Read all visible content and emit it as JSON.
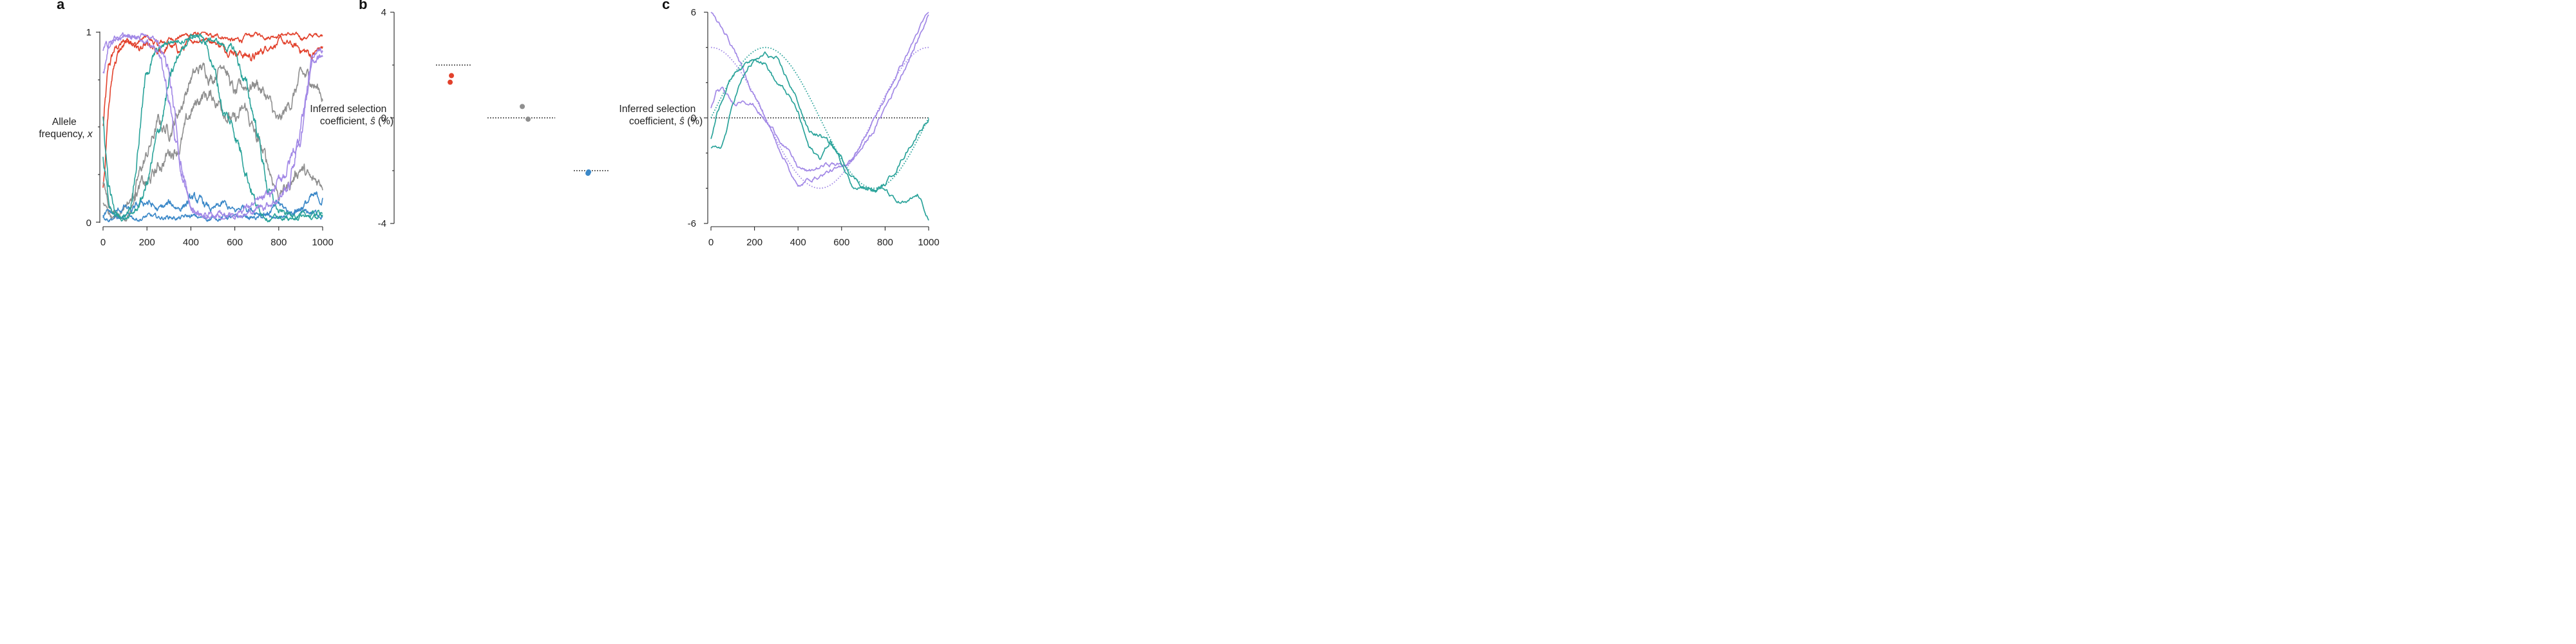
{
  "colors": {
    "red": "#e2412c",
    "gray": "#8f8f8f",
    "blue": "#3b88c8",
    "teal": "#2aa39a",
    "purple": "#a288e6",
    "axis": "#222222"
  },
  "chart_data": [
    {
      "panel": "a",
      "type": "line",
      "xlabel": "",
      "ylabel_line1": "Allele",
      "ylabel_line2": "frequency, ",
      "ylabel_var": "x",
      "xlim": [
        0,
        1000
      ],
      "ylim": [
        0,
        1
      ],
      "x_ticks": [
        0,
        200,
        400,
        600,
        800,
        1000
      ],
      "y_tick_labels": [
        "0",
        "1"
      ],
      "x": [
        0,
        25,
        50,
        75,
        100,
        125,
        150,
        175,
        200,
        250,
        300,
        350,
        400,
        450,
        500,
        550,
        600,
        650,
        700,
        750,
        800,
        850,
        900,
        950,
        1000
      ],
      "series": [
        {
          "color": "red",
          "values": [
            0.5,
            0.8,
            0.9,
            0.93,
            0.95,
            0.96,
            0.94,
            0.96,
            0.97,
            0.93,
            0.96,
            0.98,
            0.99,
            0.99,
            0.97,
            0.98,
            0.95,
            0.97,
            0.99,
            0.98,
            0.99,
            0.99,
            0.97,
            0.98,
            0.99
          ]
        },
        {
          "color": "red",
          "values": [
            0.2,
            0.6,
            0.84,
            0.9,
            0.93,
            0.95,
            0.93,
            0.9,
            0.92,
            0.87,
            0.93,
            0.9,
            0.95,
            0.97,
            0.96,
            0.92,
            0.91,
            0.88,
            0.87,
            0.93,
            0.95,
            0.93,
            0.91,
            0.88,
            0.92
          ]
        },
        {
          "color": "gray",
          "values": [
            0.1,
            0.05,
            0.02,
            0.03,
            0.02,
            0.06,
            0.18,
            0.28,
            0.35,
            0.52,
            0.48,
            0.6,
            0.76,
            0.81,
            0.77,
            0.86,
            0.66,
            0.72,
            0.74,
            0.65,
            0.5,
            0.62,
            0.76,
            0.75,
            0.67
          ]
        },
        {
          "color": "gray",
          "values": [
            0.2,
            0.1,
            0.05,
            0.05,
            0.1,
            0.12,
            0.17,
            0.2,
            0.19,
            0.28,
            0.37,
            0.41,
            0.57,
            0.67,
            0.66,
            0.61,
            0.52,
            0.59,
            0.43,
            0.3,
            0.15,
            0.2,
            0.3,
            0.2,
            0.22
          ]
        },
        {
          "color": "blue",
          "values": [
            0.03,
            0.02,
            0.03,
            0.02,
            0.02,
            0.03,
            0.02,
            0.02,
            0.03,
            0.02,
            0.03,
            0.02,
            0.03,
            0.02,
            0.02,
            0.03,
            0.02,
            0.03,
            0.02,
            0.03,
            0.02,
            0.03,
            0.04,
            0.05,
            0.04
          ]
        },
        {
          "color": "blue",
          "values": [
            0.03,
            0.05,
            0.04,
            0.06,
            0.08,
            0.05,
            0.07,
            0.09,
            0.11,
            0.06,
            0.09,
            0.08,
            0.12,
            0.1,
            0.06,
            0.09,
            0.05,
            0.09,
            0.06,
            0.05,
            0.09,
            0.05,
            0.08,
            0.12,
            0.12
          ]
        },
        {
          "color": "teal",
          "values": [
            0.55,
            0.2,
            0.06,
            0.03,
            0.04,
            0.1,
            0.3,
            0.58,
            0.8,
            0.9,
            0.95,
            0.96,
            0.98,
            0.95,
            0.96,
            0.93,
            0.9,
            0.72,
            0.5,
            0.18,
            0.05,
            0.04,
            0.03,
            0.04,
            0.05
          ]
        },
        {
          "color": "teal",
          "values": [
            0.35,
            0.09,
            0.04,
            0.02,
            0.02,
            0.03,
            0.06,
            0.12,
            0.2,
            0.45,
            0.72,
            0.89,
            0.99,
            0.98,
            0.84,
            0.58,
            0.48,
            0.3,
            0.08,
            0.03,
            0.02,
            0.02,
            0.03,
            0.02,
            0.03
          ]
        },
        {
          "color": "purple",
          "values": [
            0.78,
            0.95,
            0.98,
            0.97,
            0.98,
            0.96,
            0.98,
            0.97,
            0.95,
            0.92,
            0.65,
            0.28,
            0.07,
            0.04,
            0.04,
            0.03,
            0.05,
            0.04,
            0.07,
            0.1,
            0.13,
            0.2,
            0.5,
            0.88,
            0.89
          ]
        },
        {
          "color": "purple",
          "values": [
            0.9,
            0.93,
            0.95,
            0.97,
            0.98,
            0.96,
            0.97,
            0.99,
            0.97,
            0.96,
            0.8,
            0.35,
            0.05,
            0.03,
            0.03,
            0.04,
            0.05,
            0.08,
            0.1,
            0.12,
            0.2,
            0.32,
            0.45,
            0.85,
            0.87
          ]
        }
      ]
    },
    {
      "panel": "b",
      "type": "scatter",
      "xlabel": "",
      "ylabel_line1": "Inferred selection",
      "ylabel_line2": "coefficient, ",
      "ylabel_var": "ŝ",
      "ylabel_unit": " (%)",
      "ylim": [
        -4,
        4
      ],
      "y_tick_labels": [
        "4",
        "0",
        "-4"
      ],
      "groups": [
        {
          "color": "red",
          "true_value": 2.0,
          "points": [
            1.6,
            1.35
          ]
        },
        {
          "color": "gray",
          "true_value": 0.0,
          "points": [
            0.43,
            -0.05
          ]
        },
        {
          "color": "blue",
          "true_value": -2.0,
          "points": [
            -2.05,
            -2.1
          ]
        }
      ]
    },
    {
      "panel": "c",
      "type": "line",
      "xlabel": "",
      "ylabel_line1": "Inferred selection",
      "ylabel_line2": "coefficient, ",
      "ylabel_var": "ŝ",
      "ylabel_unit": " (%)",
      "xlim": [
        0,
        1000
      ],
      "ylim": [
        -6,
        6
      ],
      "x_ticks": [
        0,
        200,
        400,
        600,
        800,
        1000
      ],
      "y_tick_labels": [
        "6",
        "0",
        "-6"
      ],
      "x": [
        0,
        25,
        50,
        75,
        100,
        125,
        150,
        175,
        200,
        250,
        300,
        350,
        400,
        450,
        500,
        550,
        600,
        650,
        700,
        750,
        800,
        850,
        900,
        950,
        1000
      ],
      "true_profiles": [
        {
          "color": "teal",
          "amplitude": 4,
          "phase": "sin"
        },
        {
          "color": "purple",
          "amplitude": 4,
          "phase": "cos"
        }
      ],
      "series": [
        {
          "color": "purple",
          "values": [
            6.0,
            5.5,
            5.2,
            4.6,
            4.0,
            3.4,
            2.6,
            1.9,
            1.3,
            0.0,
            -1.4,
            -2.6,
            -4.0,
            -3.5,
            -3.3,
            -3.0,
            -2.9,
            -2.3,
            -1.2,
            -0.1,
            1.1,
            2.4,
            3.6,
            4.9,
            6.0
          ]
        },
        {
          "color": "purple",
          "values": [
            0.5,
            1.5,
            1.6,
            1.2,
            0.8,
            0.9,
            1.1,
            0.9,
            0.7,
            -0.2,
            -0.9,
            -1.8,
            -2.8,
            -3.1,
            -2.8,
            -2.6,
            -2.7,
            -2.4,
            -1.6,
            -0.7,
            0.6,
            1.8,
            3.1,
            4.4,
            5.9
          ]
        },
        {
          "color": "teal",
          "values": [
            -1.2,
            0.2,
            1.1,
            1.8,
            2.4,
            2.8,
            3.0,
            3.2,
            3.5,
            3.1,
            2.0,
            1.4,
            0.3,
            -1.7,
            -2.3,
            -1.3,
            -2.6,
            -3.8,
            -3.9,
            -4.1,
            -4.1,
            -4.8,
            -4.9,
            -4.4,
            -5.7
          ]
        },
        {
          "color": "teal",
          "values": [
            -1.8,
            -1.8,
            -1.6,
            -0.6,
            0.8,
            1.7,
            2.3,
            2.9,
            3.2,
            3.6,
            3.3,
            2.2,
            0.9,
            -0.8,
            -1.0,
            -1.5,
            -2.3,
            -3.3,
            -3.9,
            -4.2,
            -3.8,
            -2.9,
            -1.9,
            -0.9,
            0.0
          ]
        }
      ]
    }
  ],
  "panel_labels": [
    "a",
    "b",
    "c"
  ]
}
